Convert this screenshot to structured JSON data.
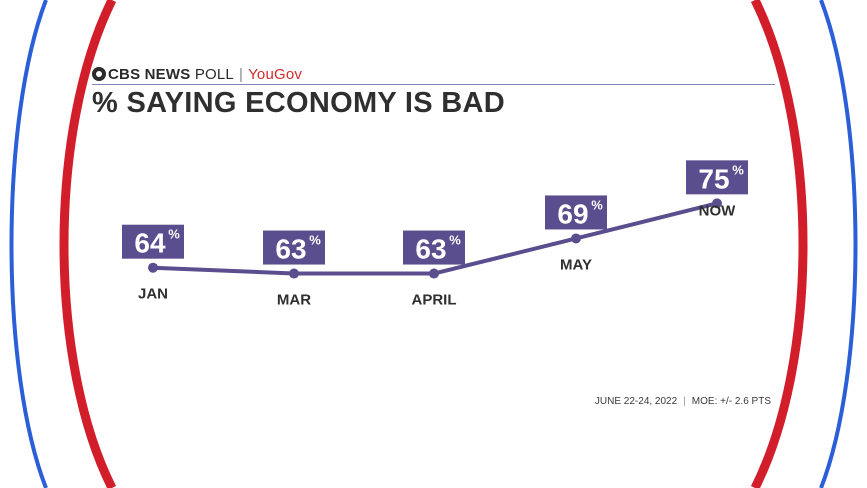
{
  "header": {
    "brand": "CBS NEWS",
    "brand_suffix": "POLL",
    "separator": "|",
    "partner": "YouGov"
  },
  "colors": {
    "line": "#5b4e8e",
    "label_box": "#5b4e8e",
    "frame_red": "#d21e2b",
    "frame_blue": "#2a5fd8"
  },
  "footer": {
    "dates": "JUNE 22-24, 2022",
    "separator": "|",
    "moe": "MOE: +/- 2.6 PTS"
  },
  "chart_data": {
    "type": "line",
    "title": "% SAYING ECONOMY IS BAD",
    "categories": [
      "JAN",
      "MAR",
      "APRIL",
      "MAY",
      "NOW"
    ],
    "values": [
      64,
      63,
      63,
      69,
      75
    ],
    "value_suffix": "%",
    "grid": false,
    "legend": "none"
  }
}
